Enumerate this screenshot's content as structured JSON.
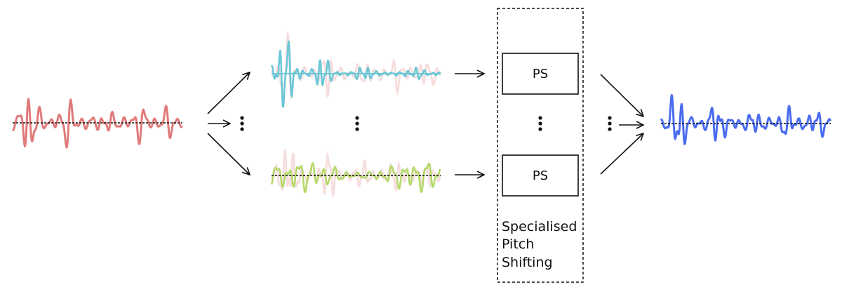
{
  "ps_box_top": {
    "label": "PS"
  },
  "ps_box_bottom": {
    "label": "PS"
  },
  "caption": {
    "line1": "Specialised",
    "line2": "Pitch",
    "line3": "Shifting"
  },
  "colors": {
    "input_wave": "#e07a7a",
    "band_top_wave": "#6cc7d6",
    "band_bottom_wave": "#b5d96a",
    "ghost_wave": "#f6dede",
    "output_wave": "#4a6cf0",
    "baseline": "#111111"
  },
  "icons": [
    "arrow-right-icon",
    "vertical-ellipsis-icon"
  ]
}
